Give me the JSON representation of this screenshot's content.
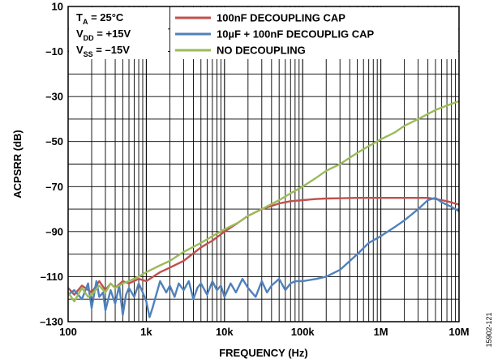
{
  "chart_data": {
    "type": "line",
    "xlabel": "FREQUENCY (Hz)",
    "ylabel": "ACPSRR (dB)",
    "xscale": "log",
    "xlim": [
      100,
      10000000
    ],
    "ylim": [
      -130,
      10
    ],
    "grid": "on",
    "legend_position": "top-right",
    "x_ticks": [
      {
        "value": 100,
        "label": "100"
      },
      {
        "value": 1000,
        "label": "1k"
      },
      {
        "value": 10000,
        "label": "10k"
      },
      {
        "value": 100000,
        "label": "100k"
      },
      {
        "value": 1000000,
        "label": "1M"
      },
      {
        "value": 10000000,
        "label": "10M"
      }
    ],
    "y_ticks": [
      {
        "value": 10,
        "label": "10"
      },
      {
        "value": -10,
        "label": "–10"
      },
      {
        "value": -30,
        "label": "–30"
      },
      {
        "value": -50,
        "label": "–50"
      },
      {
        "value": -70,
        "label": "–70"
      },
      {
        "value": -90,
        "label": "–90"
      },
      {
        "value": -110,
        "label": "–110"
      },
      {
        "value": -130,
        "label": "–130"
      }
    ],
    "conditions": [
      {
        "main": "T",
        "sub": "A",
        "rest": " = 25°C"
      },
      {
        "main": "V",
        "sub": "DD",
        "rest": " = +15V"
      },
      {
        "main": "V",
        "sub": "SS",
        "rest": " = –15V"
      }
    ],
    "series": [
      {
        "name": "100nF DECOUPLING CAP",
        "color": "#c0504d",
        "x": [
          100,
          120,
          150,
          200,
          250,
          300,
          350,
          400,
          500,
          600,
          800,
          1000,
          1500,
          2000,
          3000,
          5000,
          7000,
          10000,
          15000,
          20000,
          30000,
          50000,
          70000,
          100000,
          150000,
          200000,
          300000,
          500000,
          700000,
          1000000,
          1500000,
          2000000,
          3000000,
          4000000,
          5000000,
          7000000,
          10000000
        ],
        "y": [
          -115,
          -118,
          -114,
          -117,
          -112,
          -116,
          -113,
          -115,
          -112,
          -113,
          -111,
          -112,
          -108,
          -106,
          -103,
          -97,
          -94,
          -90,
          -86,
          -83,
          -80,
          -77.5,
          -76.5,
          -76,
          -75.5,
          -75.3,
          -75.2,
          -75,
          -75,
          -75,
          -75,
          -75,
          -75,
          -75,
          -75.5,
          -76.5,
          -78
        ]
      },
      {
        "name": "10µF + 100nF DECOUPLIG CAP",
        "color": "#4f81bd",
        "x": [
          100,
          120,
          150,
          180,
          200,
          230,
          250,
          280,
          300,
          350,
          400,
          450,
          500,
          550,
          600,
          700,
          800,
          900,
          1000,
          1100,
          1200,
          1500,
          1800,
          2000,
          2300,
          2600,
          3000,
          3500,
          4000,
          4500,
          5000,
          6000,
          7000,
          8000,
          9000,
          10000,
          12000,
          14000,
          17000,
          20000,
          25000,
          30000,
          35000,
          40000,
          50000,
          60000,
          70000,
          80000,
          100000,
          150000,
          200000,
          300000,
          500000,
          700000,
          1000000,
          1500000,
          2000000,
          3000000,
          4000000,
          5000000,
          6000000,
          8000000,
          10000000
        ],
        "y": [
          -118,
          -116,
          -120,
          -113,
          -124,
          -112,
          -119,
          -117,
          -125,
          -116,
          -122,
          -114,
          -127,
          -118,
          -115,
          -119,
          -113,
          -117,
          -121,
          -128,
          -124,
          -112,
          -117,
          -114,
          -119,
          -113,
          -116,
          -112,
          -120,
          -115,
          -113,
          -118,
          -112,
          -116,
          -114,
          -119,
          -113,
          -117,
          -111,
          -115,
          -119,
          -112,
          -117,
          -114,
          -111,
          -116,
          -113,
          -112,
          -112,
          -111,
          -110,
          -107,
          -100,
          -95,
          -92,
          -88,
          -85,
          -80,
          -76,
          -75,
          -77,
          -79,
          -81
        ]
      },
      {
        "name": "NO DECOUPLING",
        "color": "#9bbb59",
        "x": [
          100,
          120,
          150,
          180,
          200,
          250,
          300,
          350,
          400,
          500,
          600,
          800,
          1000,
          1500,
          2000,
          3000,
          5000,
          7000,
          10000,
          15000,
          20000,
          30000,
          50000,
          70000,
          100000,
          150000,
          200000,
          300000,
          500000,
          700000,
          1000000,
          1500000,
          2000000,
          3000000,
          5000000,
          7000000,
          10000000
        ],
        "y": [
          -117,
          -121,
          -115,
          -119,
          -118,
          -114,
          -117,
          -113,
          -115,
          -113,
          -112,
          -110,
          -108,
          -105,
          -103,
          -99,
          -95,
          -92,
          -89,
          -86,
          -83,
          -80,
          -76,
          -73,
          -70,
          -66,
          -63,
          -60,
          -55,
          -52,
          -49,
          -46,
          -43,
          -40,
          -36,
          -34,
          -32
        ]
      }
    ]
  },
  "figure_id": "15902-121"
}
